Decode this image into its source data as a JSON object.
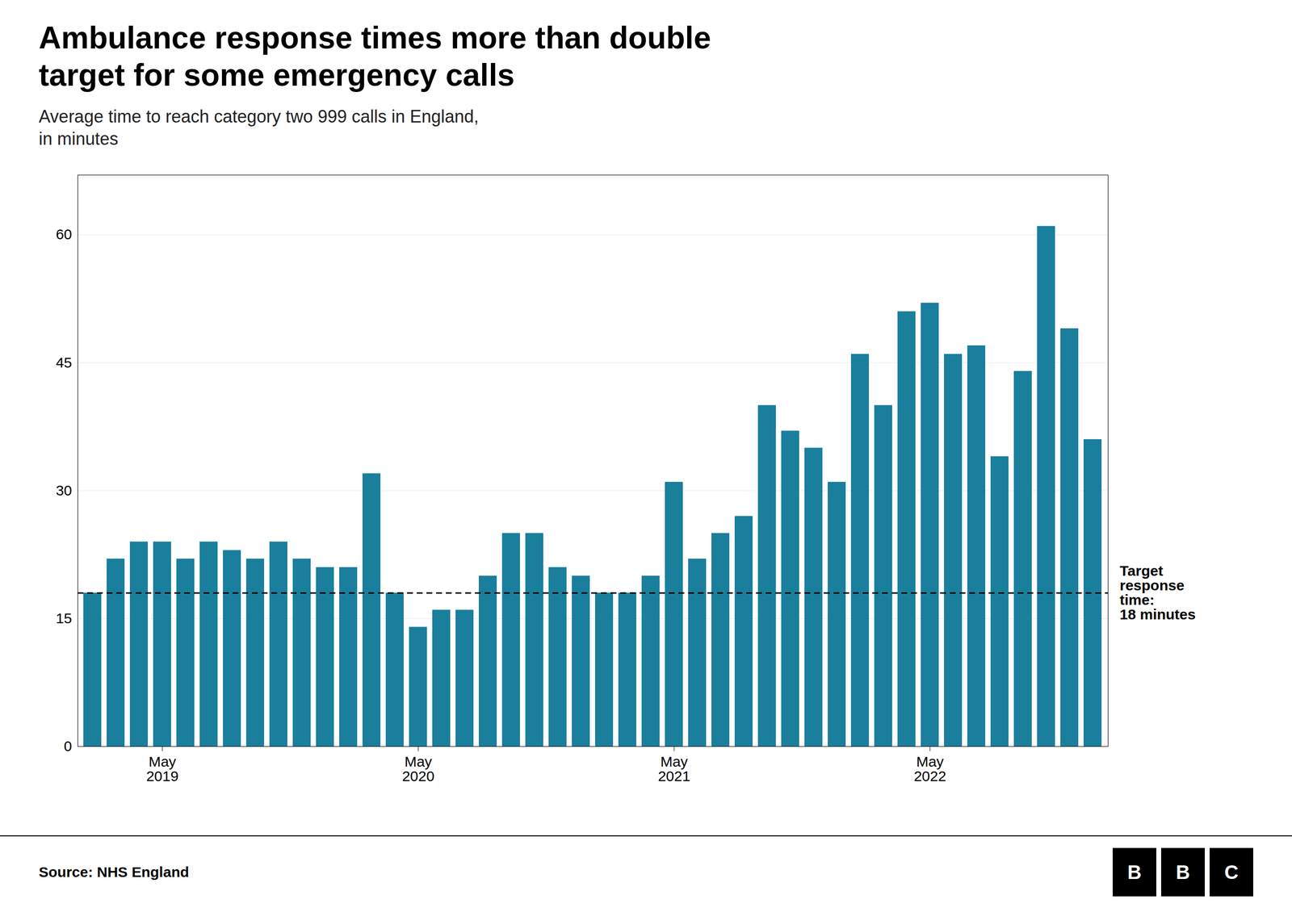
{
  "chart_data": {
    "type": "bar",
    "title": "Ambulance response times more than double\ntarget for some emergency calls",
    "subtitle": "Average time to reach category two 999 calls in England,\nin minutes",
    "source": "Source: NHS England",
    "logo": "BBC",
    "categories": [
      null,
      null,
      null,
      "May\n2019",
      null,
      null,
      null,
      null,
      null,
      null,
      null,
      null,
      null,
      null,
      "May\n2020",
      null,
      null,
      null,
      null,
      null,
      null,
      null,
      null,
      null,
      null,
      "May\n2021",
      null,
      null,
      null,
      null,
      null,
      null,
      null,
      null,
      null,
      null,
      "May\n2022",
      null,
      null,
      null,
      null,
      null,
      null,
      null
    ],
    "values": [
      18,
      22,
      24,
      24,
      22,
      24,
      23,
      22,
      24,
      22,
      21,
      21,
      32,
      18,
      14,
      16,
      16,
      20,
      25,
      25,
      21,
      20,
      18,
      18,
      20,
      31,
      22,
      25,
      27,
      40,
      37,
      35,
      31,
      46,
      40,
      51,
      52,
      46,
      47,
      34,
      44,
      61,
      49,
      36
    ],
    "color": "#1a7f9c",
    "ylim": [
      0,
      67
    ],
    "yticks": [
      0,
      15,
      30,
      45,
      60
    ],
    "grid": true,
    "annotations": [
      {
        "y": 18,
        "text": "Target\nresponse\ntime:\n18 minutes",
        "line_style": "dashed"
      }
    ]
  }
}
